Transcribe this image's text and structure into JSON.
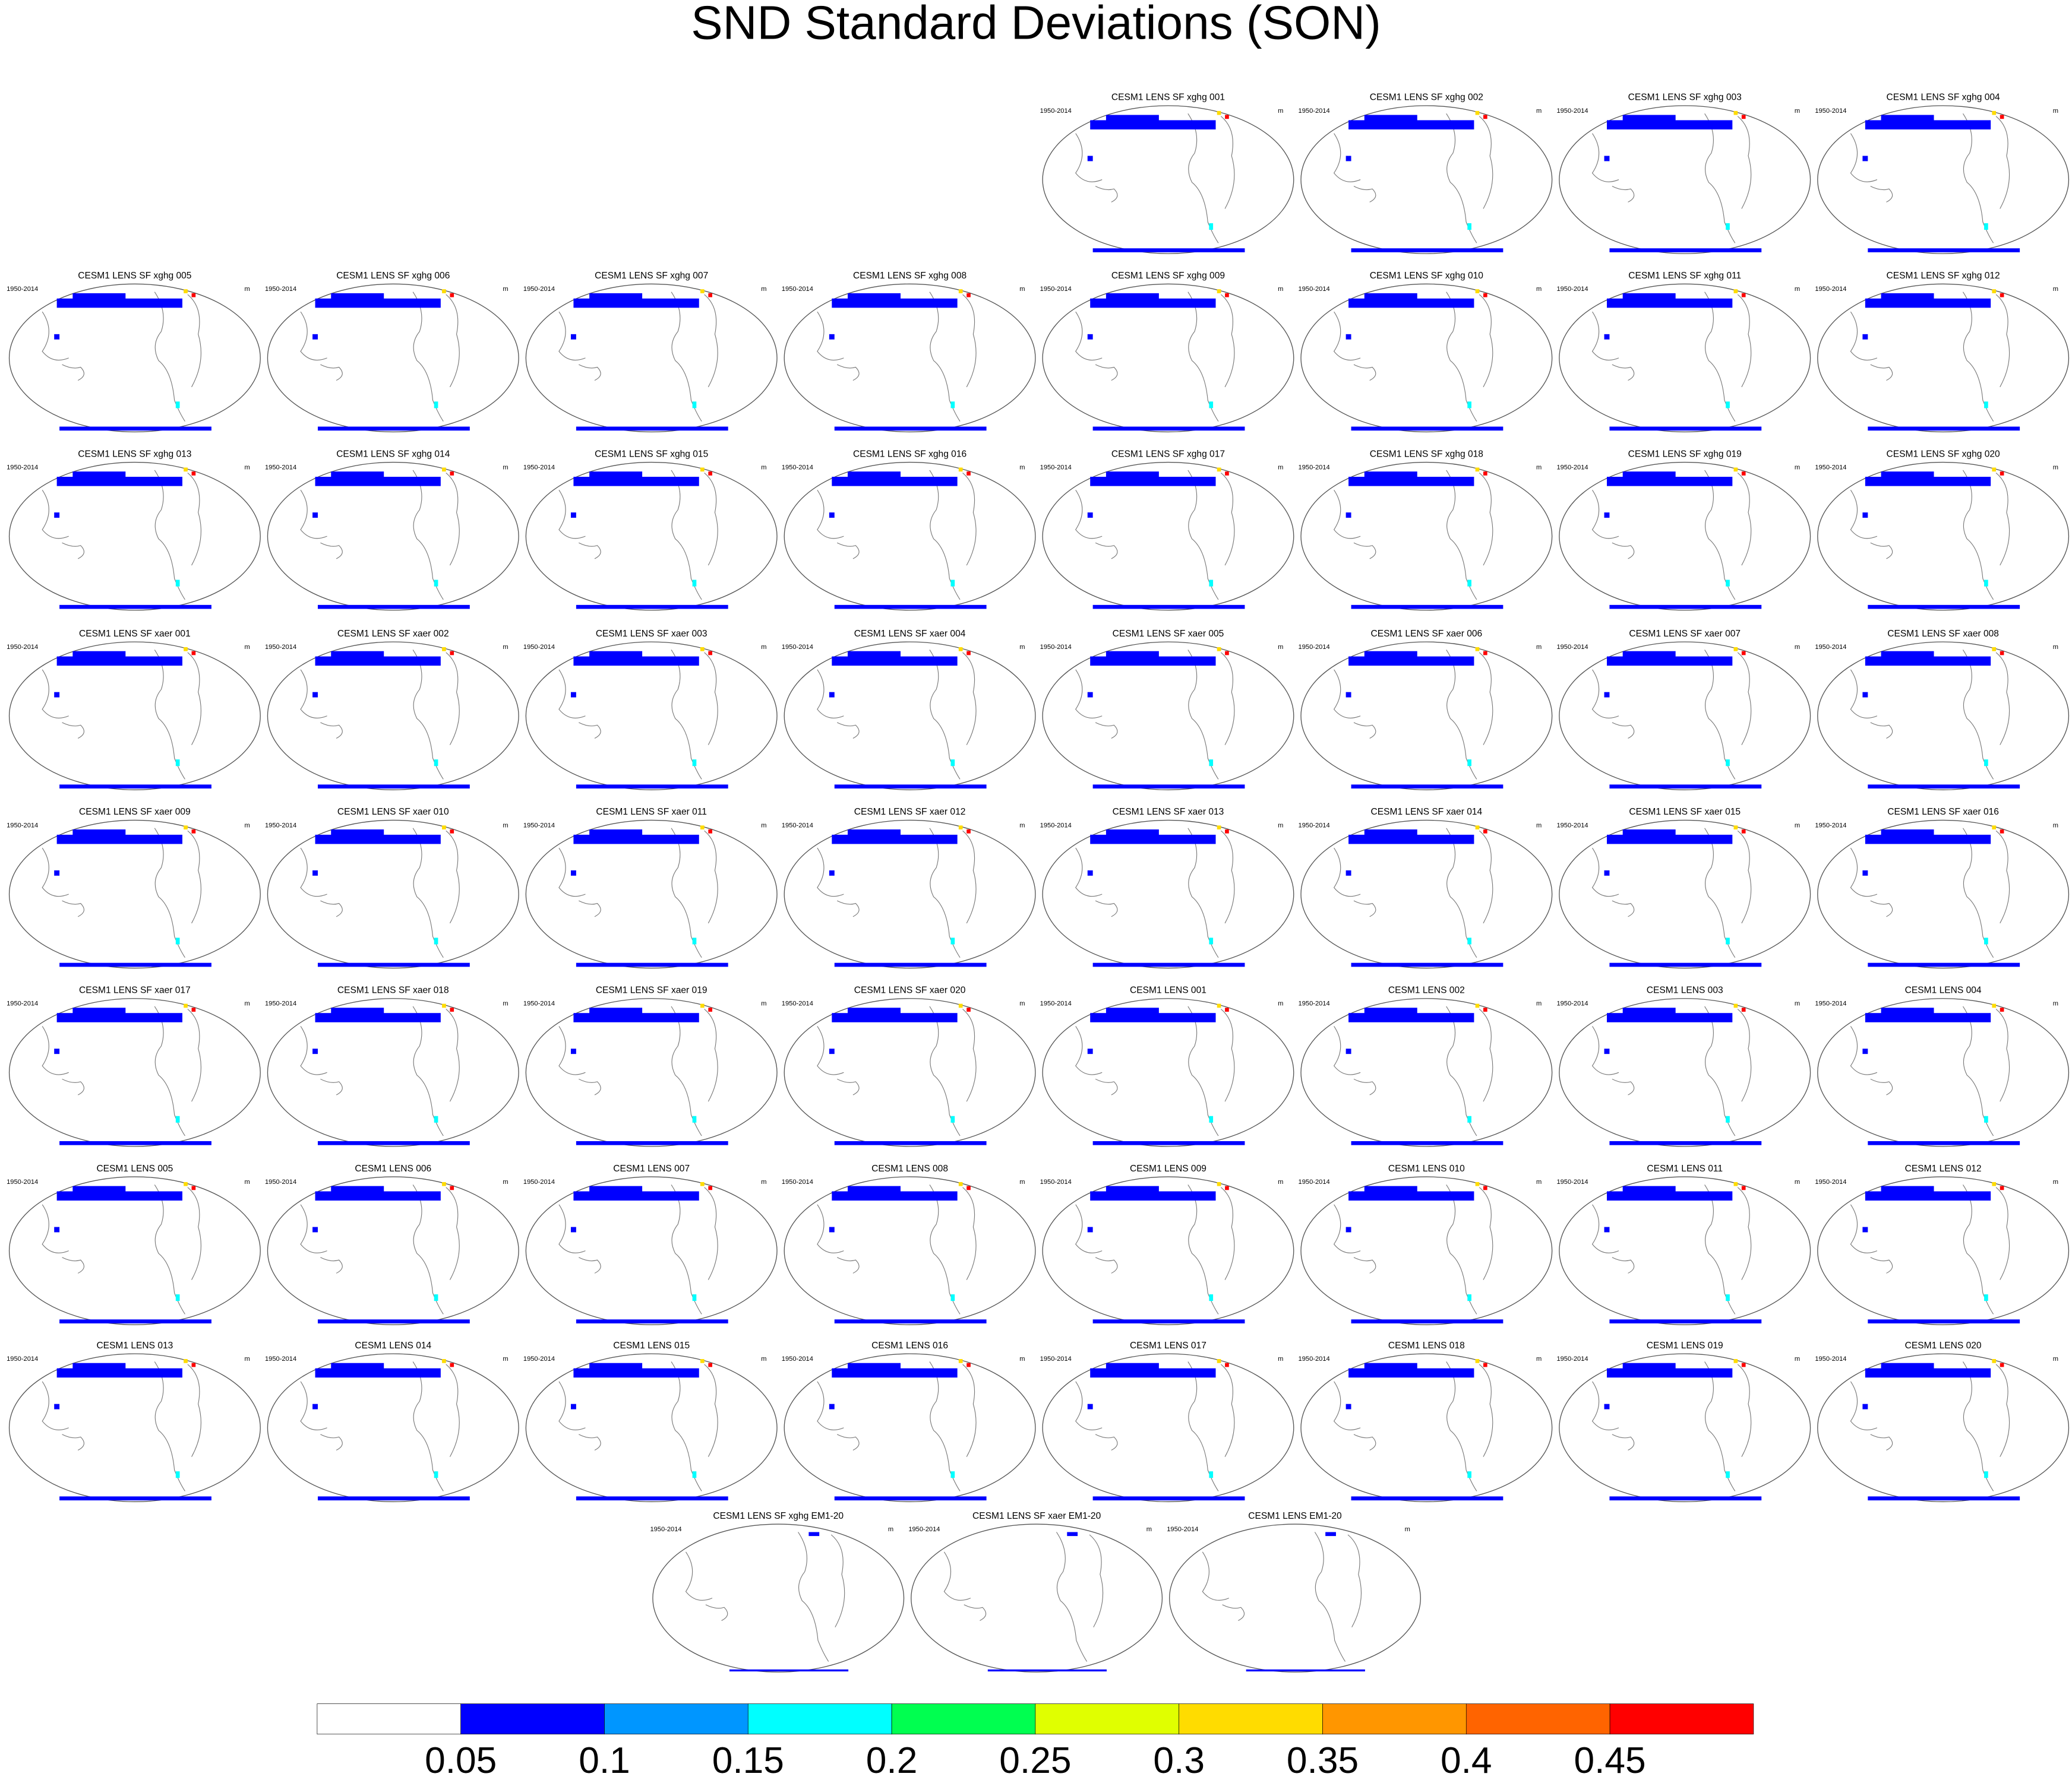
{
  "title": "SND Standard Deviations (SON)",
  "period": "1950-2014",
  "units": "m",
  "panels": [
    {
      "title": "CESM1 LENS SF xghg 001"
    },
    {
      "title": "CESM1 LENS SF xghg 002"
    },
    {
      "title": "CESM1 LENS SF xghg 003"
    },
    {
      "title": "CESM1 LENS SF xghg 004"
    },
    {
      "title": "CESM1 LENS SF xghg 005"
    },
    {
      "title": "CESM1 LENS SF xghg 006"
    },
    {
      "title": "CESM1 LENS SF xghg 007"
    },
    {
      "title": "CESM1 LENS SF xghg 008"
    },
    {
      "title": "CESM1 LENS SF xghg 009"
    },
    {
      "title": "CESM1 LENS SF xghg 010"
    },
    {
      "title": "CESM1 LENS SF xghg 011"
    },
    {
      "title": "CESM1 LENS SF xghg 012"
    },
    {
      "title": "CESM1 LENS SF xghg 013"
    },
    {
      "title": "CESM1 LENS SF xghg 014"
    },
    {
      "title": "CESM1 LENS SF xghg 015"
    },
    {
      "title": "CESM1 LENS SF xghg 016"
    },
    {
      "title": "CESM1 LENS SF xghg 017"
    },
    {
      "title": "CESM1 LENS SF xghg 018"
    },
    {
      "title": "CESM1 LENS SF xghg 019"
    },
    {
      "title": "CESM1 LENS SF xghg 020"
    },
    {
      "title": "CESM1 LENS SF xaer 001"
    },
    {
      "title": "CESM1 LENS SF xaer 002"
    },
    {
      "title": "CESM1 LENS SF xaer 003"
    },
    {
      "title": "CESM1 LENS SF xaer 004"
    },
    {
      "title": "CESM1 LENS SF xaer 005"
    },
    {
      "title": "CESM1 LENS SF xaer 006"
    },
    {
      "title": "CESM1 LENS SF xaer 007"
    },
    {
      "title": "CESM1 LENS SF xaer 008"
    },
    {
      "title": "CESM1 LENS SF xaer 009"
    },
    {
      "title": "CESM1 LENS SF xaer 010"
    },
    {
      "title": "CESM1 LENS SF xaer 011"
    },
    {
      "title": "CESM1 LENS SF xaer 012"
    },
    {
      "title": "CESM1 LENS SF xaer 013"
    },
    {
      "title": "CESM1 LENS SF xaer 014"
    },
    {
      "title": "CESM1 LENS SF xaer 015"
    },
    {
      "title": "CESM1 LENS SF xaer 016"
    },
    {
      "title": "CESM1 LENS SF xaer 017"
    },
    {
      "title": "CESM1 LENS SF xaer 018"
    },
    {
      "title": "CESM1 LENS SF xaer 019"
    },
    {
      "title": "CESM1 LENS SF xaer 020"
    },
    {
      "title": "CESM1 LENS 001"
    },
    {
      "title": "CESM1 LENS 002"
    },
    {
      "title": "CESM1 LENS 003"
    },
    {
      "title": "CESM1 LENS 004"
    },
    {
      "title": "CESM1 LENS 005"
    },
    {
      "title": "CESM1 LENS 006"
    },
    {
      "title": "CESM1 LENS 007"
    },
    {
      "title": "CESM1 LENS 008"
    },
    {
      "title": "CESM1 LENS 009"
    },
    {
      "title": "CESM1 LENS 010"
    },
    {
      "title": "CESM1 LENS 011"
    },
    {
      "title": "CESM1 LENS 012"
    },
    {
      "title": "CESM1 LENS 013"
    },
    {
      "title": "CESM1 LENS 014"
    },
    {
      "title": "CESM1 LENS 015"
    },
    {
      "title": "CESM1 LENS 016"
    },
    {
      "title": "CESM1 LENS 017"
    },
    {
      "title": "CESM1 LENS 018"
    },
    {
      "title": "CESM1 LENS 019"
    },
    {
      "title": "CESM1 LENS 020"
    },
    {
      "title": "CESM1 LENS SF xghg EM1-20"
    },
    {
      "title": "CESM1 LENS SF xaer EM1-20"
    },
    {
      "title": "CESM1 LENS EM1-20"
    }
  ],
  "colorbar": {
    "colors": [
      "#ffffff",
      "#0000ff",
      "#0096ff",
      "#00ffff",
      "#00ff50",
      "#e0ff00",
      "#ffdc00",
      "#ff9600",
      "#ff6400",
      "#ff0000"
    ],
    "levels": [
      0.05,
      0.1,
      0.15,
      0.2,
      0.25,
      0.3,
      0.35,
      0.4,
      0.45
    ]
  }
}
